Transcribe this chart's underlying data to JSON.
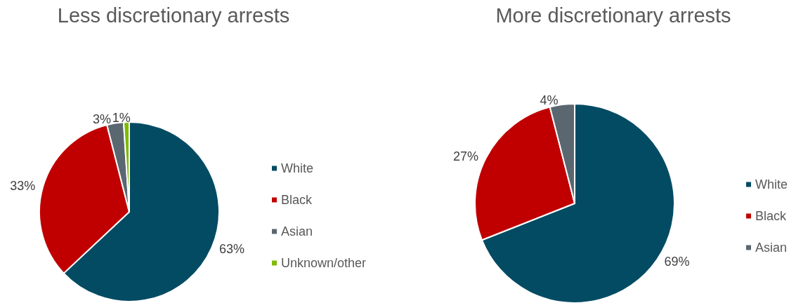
{
  "chart_data": [
    {
      "type": "pie",
      "title": "Less discretionary arrests",
      "categories": [
        "White",
        "Black",
        "Asian",
        "Unknown/other"
      ],
      "values": [
        63,
        33,
        3,
        1
      ],
      "value_labels": [
        "63%",
        "33%",
        "3%",
        "1%"
      ],
      "colors": [
        "#024b63",
        "#c00000",
        "#5b6770",
        "#7fba00"
      ],
      "legend": "right"
    },
    {
      "type": "pie",
      "title": "More discretionary arrests",
      "categories": [
        "White",
        "Black",
        "Asian"
      ],
      "values": [
        69,
        27,
        4
      ],
      "value_labels": [
        "69%",
        "27%",
        "4%"
      ],
      "colors": [
        "#024b63",
        "#c00000",
        "#5b6770"
      ],
      "legend": "right"
    }
  ]
}
